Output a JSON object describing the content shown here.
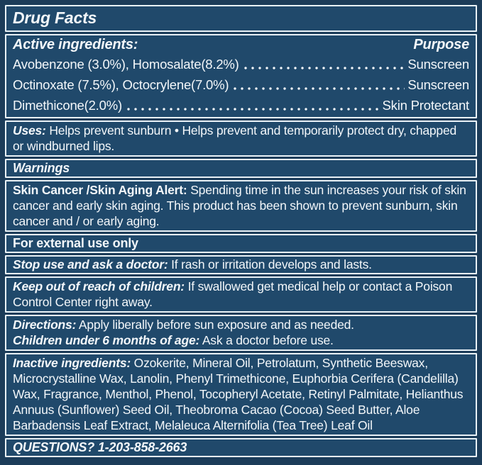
{
  "colors": {
    "page_bg": "#1c3c59",
    "box_bg": "#20496b",
    "border": "#e9f1f6",
    "text": "#f3f7fa"
  },
  "title": "Drug Facts",
  "active": {
    "heading": "Active ingredients:",
    "purpose_heading": "Purpose",
    "rows": [
      {
        "name": "Avobenzone (3.0%), Homosalate(8.2%)",
        "purpose": "Sunscreen"
      },
      {
        "name": "Octinoxate (7.5%), Octocrylene(7.0%)",
        "purpose": "Sunscreen"
      },
      {
        "name": "Dimethicone(2.0%)",
        "purpose": "Skin Protectant"
      }
    ]
  },
  "uses": {
    "label": "Uses:",
    "text": "Helps prevent sunburn • Helps prevent and temporarily protect dry, chapped or windburned lips."
  },
  "warnings": {
    "heading": "Warnings"
  },
  "skin_alert": {
    "label": "Skin Cancer /Skin Aging Alert:",
    "text": "Spending time in the sun increases your risk of skin cancer and early skin aging. This product has been shown to prevent sunburn, skin cancer and / or early aging."
  },
  "external_use": {
    "heading": "For external use only"
  },
  "stop_use": {
    "label": "Stop use and ask a doctor:",
    "text": "If rash or irritation develops and lasts."
  },
  "keep_out": {
    "label": "Keep out of reach of children:",
    "text": "If swallowed get medical help or contact a Poison Control Center right away."
  },
  "directions": {
    "label": "Directions:",
    "text": "Apply liberally before sun exposure and as needed."
  },
  "children": {
    "label": "Children under 6 months of age:",
    "text": "Ask a doctor before use."
  },
  "inactive": {
    "label": "Inactive ingredients:",
    "text": "Ozokerite, Mineral Oil, Petrolatum, Synthetic Beeswax, Microcrystalline Wax, Lanolin, Phenyl Trimethicone, Euphorbia Cerifera (Candelilla) Wax, Fragrance, Menthol, Phenol, Tocopheryl Acetate, Retinyl Palmitate, Helianthus Annuus (Sunflower) Seed Oil, Theobroma Cacao (Cocoa) Seed Butter, Aloe Barbadensis Leaf Extract, Melaleuca Alternifolia (Tea Tree) Leaf Oil"
  },
  "questions": {
    "label": "QUESTIONS?",
    "phone": "1-203-858-2663"
  }
}
